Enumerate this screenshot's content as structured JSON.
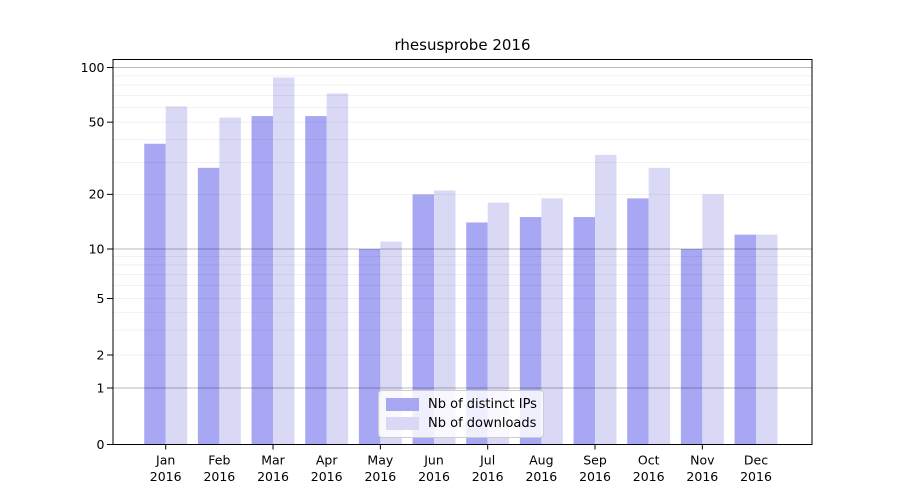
{
  "chart_data": {
    "type": "bar",
    "title": "rhesusprobe 2016",
    "x_months": [
      "Jan",
      "Feb",
      "Mar",
      "Apr",
      "May",
      "Jun",
      "Jul",
      "Aug",
      "Sep",
      "Oct",
      "Nov",
      "Dec"
    ],
    "x_year": "2016",
    "y_ticks": [
      100,
      50,
      20,
      10,
      5,
      2,
      1,
      0
    ],
    "y_scale": "symlog",
    "ylim": [
      0,
      110
    ],
    "grid": true,
    "legend_position": "lower-center",
    "series": [
      {
        "name": "Nb of distinct IPs",
        "color": "#a7a7f3",
        "values": [
          38,
          28,
          54,
          54,
          10,
          20,
          14,
          15,
          15,
          19,
          10,
          12
        ]
      },
      {
        "name": "Nb of downloads",
        "color": "#d9d9f6",
        "values": [
          61,
          53,
          88,
          72,
          11,
          21,
          18,
          19,
          33,
          28,
          20,
          12
        ]
      }
    ]
  }
}
